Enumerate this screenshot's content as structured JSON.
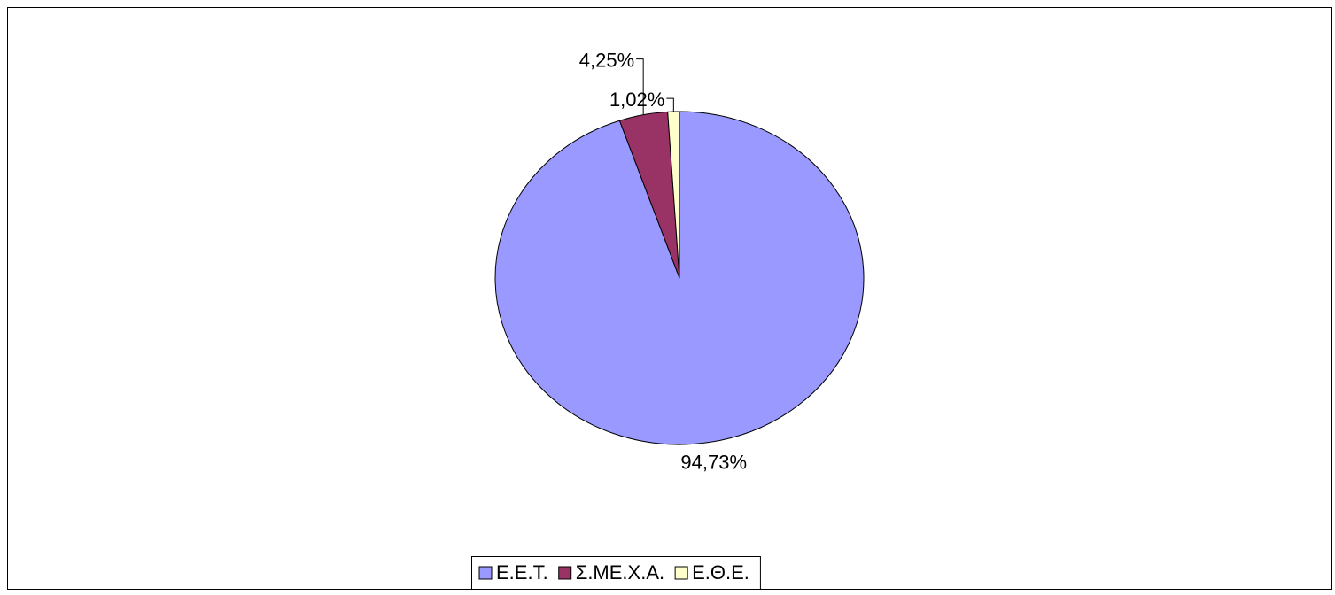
{
  "chart_data": {
    "type": "pie",
    "categories": [
      "Ε.Ε.Τ.",
      "Σ.ΜΕ.Χ.Α.",
      "Ε.Θ.Ε."
    ],
    "values": [
      94.73,
      4.25,
      1.02
    ],
    "value_labels": [
      "94,73%",
      "4,25%",
      "1,02%"
    ],
    "colors": [
      "#9999ff",
      "#993366",
      "#ffffcc"
    ],
    "legend": "bottom"
  }
}
